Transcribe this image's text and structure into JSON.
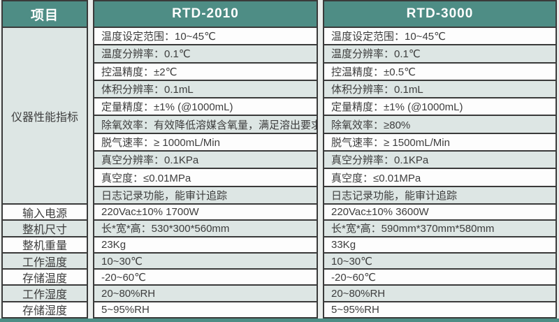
{
  "header": {
    "items": "项目",
    "rtd2010": "RTD-2010",
    "rtd3000": "RTD-3000"
  },
  "performance_group_label": "仪器性能指标",
  "performance_rows": [
    {
      "rtd2010": "温度设定范围：10~45℃",
      "rtd3000": "温度设定范围：10~45℃"
    },
    {
      "rtd2010": "温度分辨率：0.1℃",
      "rtd3000": "温度分辨率：0.1℃"
    },
    {
      "rtd2010": "控温精度：±2℃",
      "rtd3000": "控温精度：±0.5℃"
    },
    {
      "rtd2010": "体积分辨率：0.1mL",
      "rtd3000": "体积分辨率：0.1mL"
    },
    {
      "rtd2010": "定量精度：±1% (@1000mL)",
      "rtd3000": "定量精度：±1% (@1000mL)"
    },
    {
      "rtd2010": "除氧效率：有效降低溶媒含氧量，满足溶出要求",
      "rtd3000": "除氧效率：≥80%"
    },
    {
      "rtd2010": "脱气速率：≥ 1000mL/Min",
      "rtd3000": "脱气速率：≥ 1500mL/Min"
    },
    {
      "rtd2010": "真空分辨率：0.1KPa",
      "rtd3000": "真空分辨率：0.1KPa"
    },
    {
      "rtd2010": "真空度：≤0.01MPa",
      "rtd3000": "真空度：≤0.01MPa"
    },
    {
      "rtd2010": "日志记录功能，能审计追踪",
      "rtd3000": "日志记录功能，能审计追踪"
    }
  ],
  "bottom_rows": [
    {
      "label": "输入电源",
      "rtd2010": "220Vac±10% 1700W",
      "rtd3000": "220Vac±10% 3600W"
    },
    {
      "label": "整机尺寸",
      "rtd2010": "长*宽*高：530*300*560mm",
      "rtd3000": "长*宽*高：590mm*370mm*580mm"
    },
    {
      "label": "整机重量",
      "rtd2010": "23Kg",
      "rtd3000": "33Kg"
    },
    {
      "label": "工作温度",
      "rtd2010": "10~30℃",
      "rtd3000": "10~30℃"
    },
    {
      "label": "存储温度",
      "rtd2010": "-20~60℃",
      "rtd3000": "-20~60℃"
    },
    {
      "label": "工作湿度",
      "rtd2010": "20~80%RH",
      "rtd3000": "20~80%RH"
    },
    {
      "label": "存储湿度",
      "rtd2010": "5~95%RH",
      "rtd3000": "5~95%RH"
    }
  ],
  "colors": {
    "header_bg": "#4e8d85",
    "row_white": "#fdfdfd",
    "row_tint": "#dde6e4",
    "gutter": "#e9edeb",
    "border": "#3a3a3a",
    "text": "#3d3d3d",
    "header_text": "#ffffff"
  }
}
